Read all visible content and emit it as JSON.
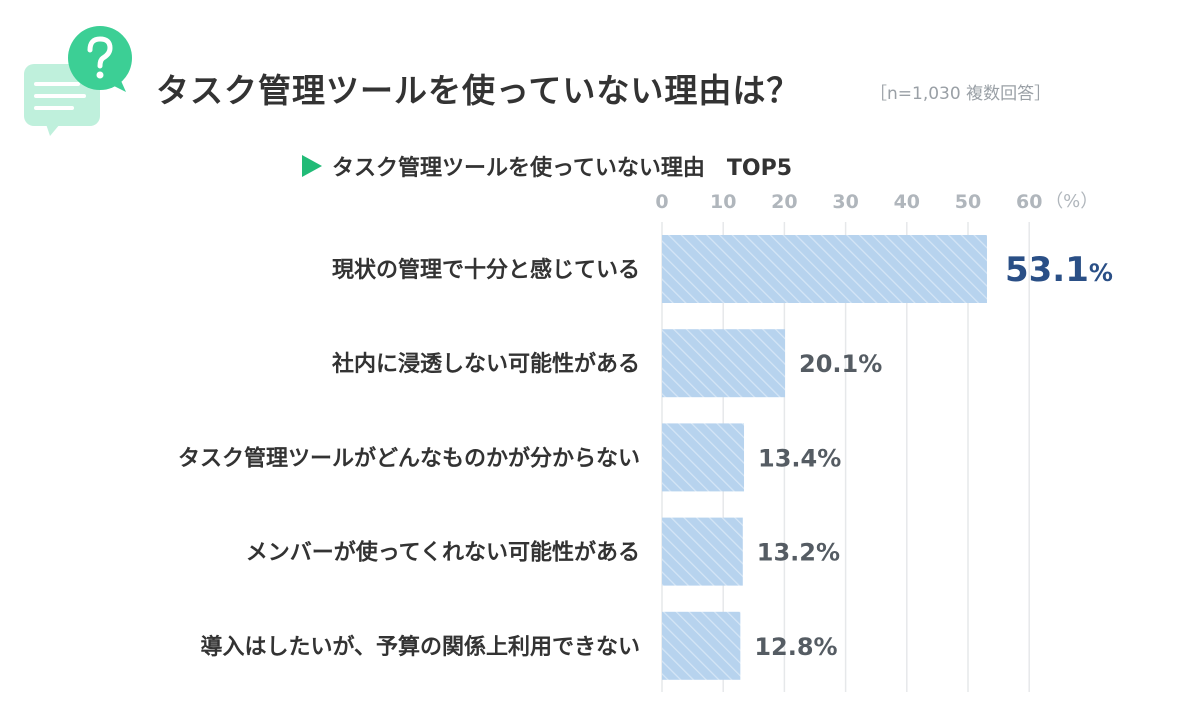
{
  "header": {
    "title": "タスク管理ツールを使っていない理由は？",
    "note": "［n=1,030 複数回答］",
    "icon": "question-chat-icon"
  },
  "colors": {
    "bar_fill": "#b7d3ee",
    "bar_stripe": "#d5e6f6",
    "highlight_value": "#2a4f86",
    "value_text": "#555c63",
    "accent_green": "#22bb77",
    "bubble_light": "#bff0dc",
    "bubble_dark": "#3ccf95",
    "grid": "#e6e8ea"
  },
  "chart_data": {
    "type": "bar",
    "orientation": "horizontal",
    "title": "タスク管理ツールを使っていない理由　TOP5",
    "unit": "（%）",
    "xlim": [
      0,
      60
    ],
    "ticks": [
      0,
      10,
      20,
      30,
      40,
      50,
      60
    ],
    "grid": true,
    "categories": [
      "現状の管理で十分と感じている",
      "社内に浸透しない可能性がある",
      "タスク管理ツールがどんなものかが分からない",
      "メンバーが使ってくれない可能性がある",
      "導入はしたいが、予算の関係上利用できない"
    ],
    "values": [
      53.1,
      20.1,
      13.4,
      13.2,
      12.8
    ],
    "value_labels": [
      "53.1",
      "20.1%",
      "13.4%",
      "13.2%",
      "12.8%"
    ],
    "top_value_suffix": "%"
  }
}
